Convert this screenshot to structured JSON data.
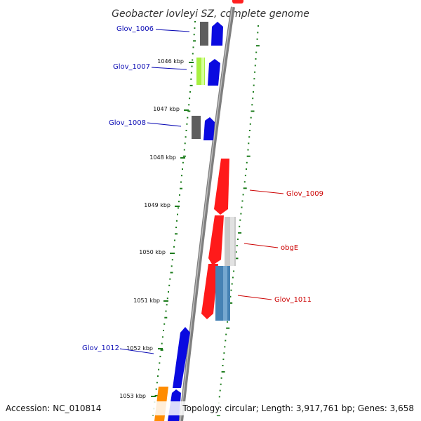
{
  "title": "Geobacter lovleyi SZ, complete genome",
  "footer": {
    "accession": "Accession: NC_010814",
    "topology": "Topology: circular; Length: 3,917,761 bp; Genes: 3,658"
  },
  "colors": {
    "backbone": "#8a8a8a",
    "gc_dots": "#1c7c1c",
    "forward_label": "#0a0ab4",
    "reverse_label": "#cc0000"
  },
  "kbp_ticks": [
    {
      "label": "1046 kbp"
    },
    {
      "label": "1047 kbp"
    },
    {
      "label": "1048 kbp"
    },
    {
      "label": "1049 kbp"
    },
    {
      "label": "1050 kbp"
    },
    {
      "label": "1051 kbp"
    },
    {
      "label": "1052 kbp"
    },
    {
      "label": "1053 kbp"
    }
  ],
  "gene_labels": [
    {
      "name": "Glov_1006",
      "strand": "forward"
    },
    {
      "name": "Glov_1007",
      "strand": "forward"
    },
    {
      "name": "Glov_1008",
      "strand": "forward"
    },
    {
      "name": "Glov_1009",
      "strand": "reverse"
    },
    {
      "name": "obgE",
      "strand": "reverse"
    },
    {
      "name": "Glov_1011",
      "strand": "reverse"
    },
    {
      "name": "Glov_1012",
      "strand": "forward"
    }
  ]
}
